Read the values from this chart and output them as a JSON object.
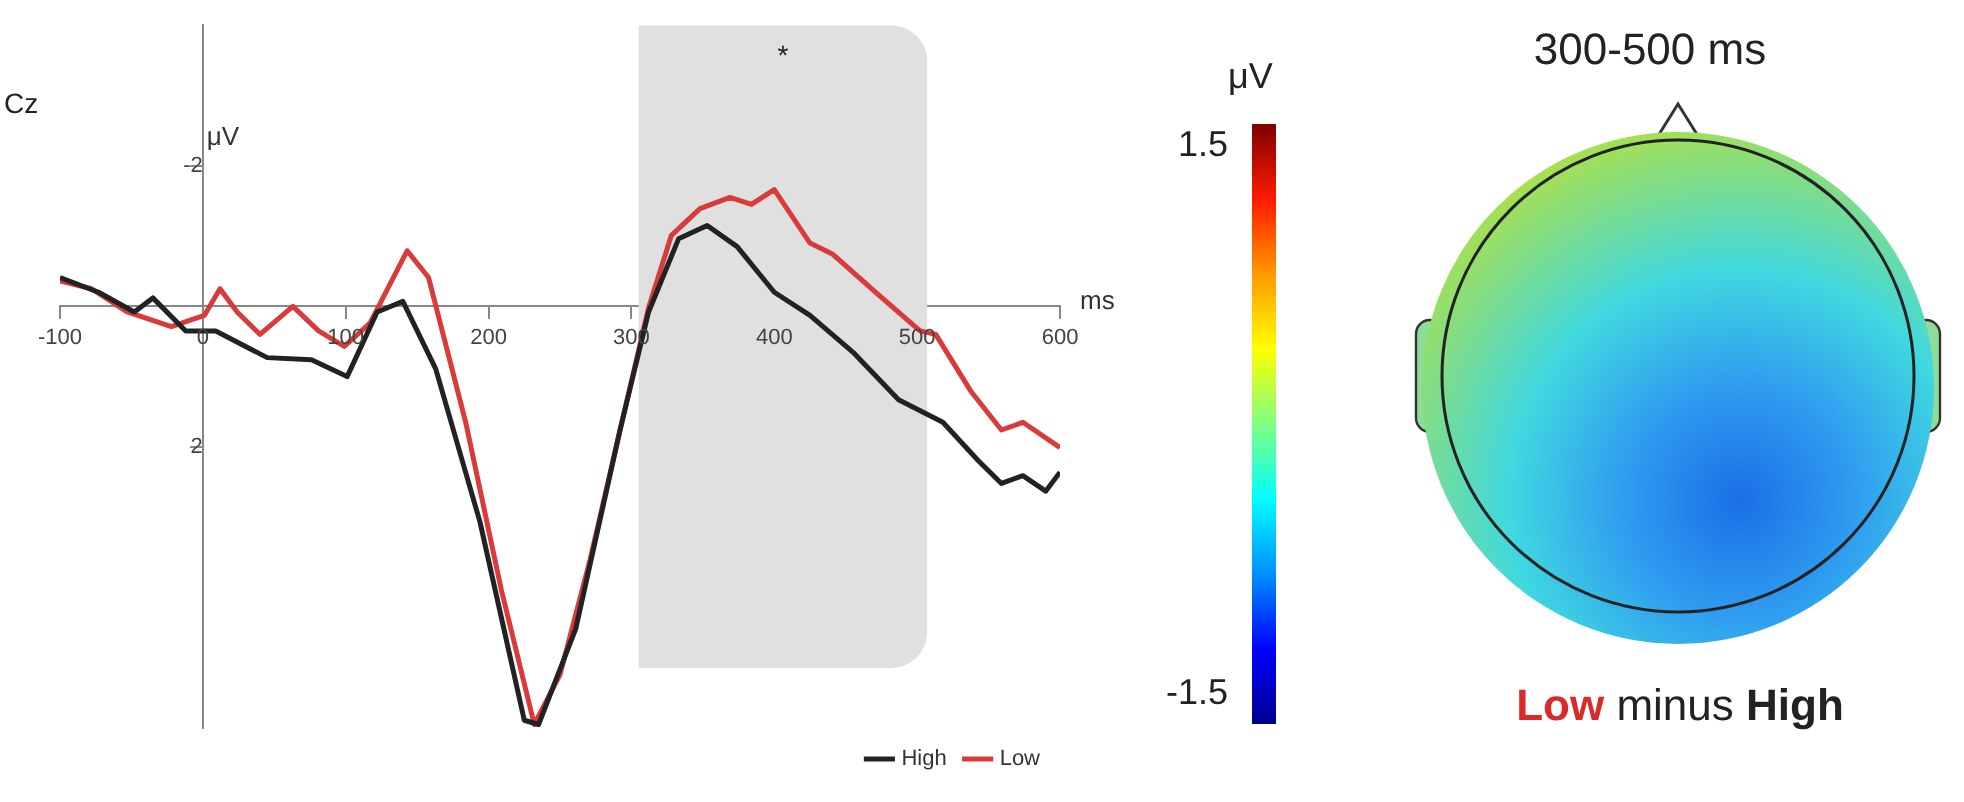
{
  "chart_data": [
    {
      "type": "line",
      "xlabel": "ms",
      "ylabel": "μV",
      "xlim": [
        -100,
        600
      ],
      "xticks": [
        -100,
        0,
        100,
        200,
        300,
        400,
        500,
        600
      ],
      "ylim": [
        6,
        -4
      ],
      "yticks": [
        -2,
        2
      ],
      "grid": false,
      "legend": "bottom right",
      "marker": "none",
      "bands": [
        {
          "axis": "x",
          "from": 305,
          "to": 507,
          "color": "#e0e0e0"
        }
      ],
      "annotations": [
        "Cz",
        "*"
      ],
      "series": [
        {
          "name": "High",
          "color": "#222222",
          "x": [
            -100,
            -73,
            -48,
            -35,
            -12,
            9,
            45,
            76,
            101,
            122,
            140,
            163,
            194,
            225,
            235,
            261,
            292,
            312,
            333,
            353,
            374,
            400,
            425,
            456,
            487,
            518,
            543,
            559,
            574,
            590,
            600
          ],
          "values": [
            -0.41,
            -0.2,
            0.08,
            -0.12,
            0.35,
            0.35,
            0.73,
            0.76,
            1.0,
            0.08,
            -0.07,
            0.89,
            3.07,
            5.89,
            5.95,
            4.59,
            1.76,
            0.08,
            -0.96,
            -1.15,
            -0.85,
            -0.2,
            0.13,
            0.67,
            1.33,
            1.65,
            2.2,
            2.52,
            2.41,
            2.63,
            2.36
          ]
        },
        {
          "name": "Low",
          "color": "#d93a3a",
          "x": [
            -100,
            -78,
            -53,
            -22,
            1,
            12,
            24,
            40,
            63,
            81,
            99,
            117,
            143,
            158,
            184,
            209,
            232,
            250,
            271,
            297,
            312,
            328,
            348,
            369,
            384,
            400,
            425,
            441,
            471,
            502,
            513,
            538,
            559,
            574,
            600
          ],
          "values": [
            -0.36,
            -0.25,
            0.08,
            0.29,
            0.13,
            -0.25,
            0.08,
            0.4,
            0,
            0.35,
            0.57,
            0.24,
            -0.79,
            -0.41,
            1.65,
            4.04,
            5.95,
            5.24,
            3.61,
            1.33,
            0.02,
            -1.01,
            -1.39,
            -1.55,
            -1.45,
            -1.66,
            -0.9,
            -0.74,
            -0.2,
            0.35,
            0.4,
            1.22,
            1.76,
            1.65,
            2.01
          ]
        }
      ]
    },
    {
      "type": "other",
      "title": "300-500 ms",
      "clabel": "μV",
      "annotations": [
        "Low minus High",
        "1.5",
        "-1.5"
      ]
    }
  ]
}
